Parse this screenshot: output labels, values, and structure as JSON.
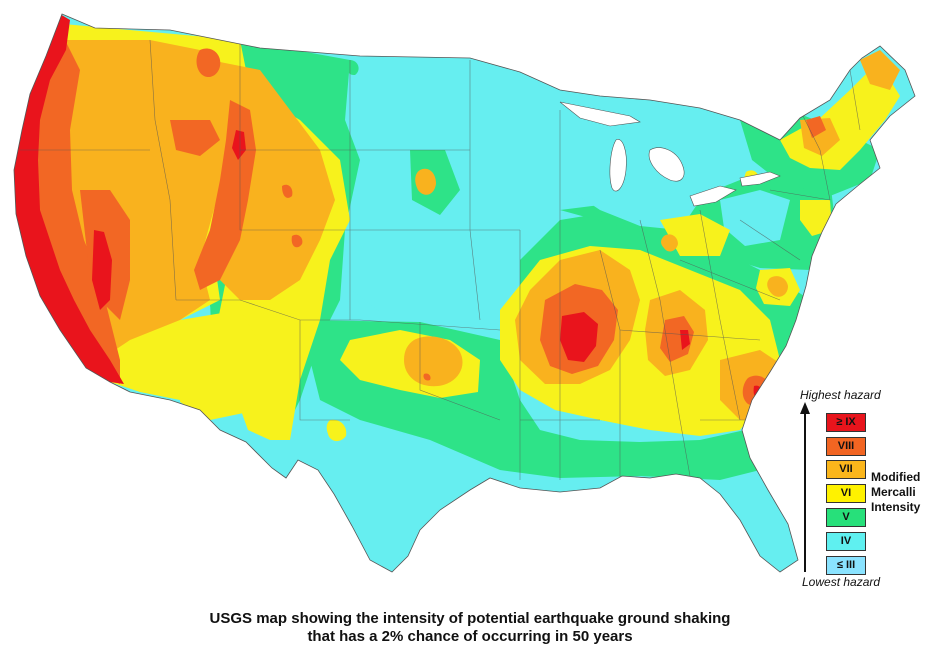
{
  "caption": {
    "line1": "USGS map showing the intensity of potential earthquake ground shaking",
    "line2": "that has a 2% chance of occurring in 50 years"
  },
  "legend": {
    "top_label": "Highest hazard",
    "bottom_label": "Lowest hazard",
    "scale_title_lines": [
      "Modified",
      "Mercalli",
      "Intensity"
    ],
    "items": [
      {
        "label": "≥ IX",
        "color": "#e8141c"
      },
      {
        "label": "VIII",
        "color": "#f26522"
      },
      {
        "label": "VII",
        "color": "#fbb61b"
      },
      {
        "label": "VI",
        "color": "#fff200"
      },
      {
        "label": "V",
        "color": "#27e07a"
      },
      {
        "label": "IV",
        "color": "#5ff0f0"
      },
      {
        "label": "≤ III",
        "color": "#8ae3ff"
      }
    ]
  },
  "map": {
    "colors": {
      "land": "#66eef0",
      "v": "#2ee388",
      "vi": "#f7f21c",
      "vii": "#f9b21e",
      "viii": "#f26724",
      "ix": "#e9141c",
      "border": "#555555"
    }
  }
}
